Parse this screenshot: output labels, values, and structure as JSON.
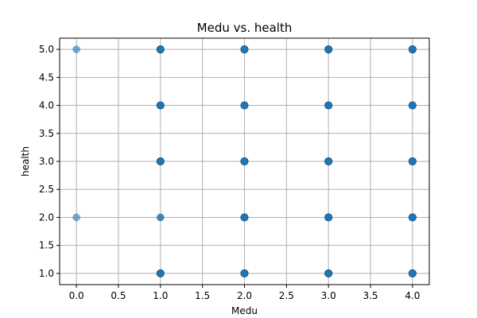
{
  "chart_data": {
    "type": "scatter",
    "title": "Medu vs. health",
    "xlabel": "Medu",
    "ylabel": "health",
    "xlim": [
      -0.2,
      4.2
    ],
    "ylim": [
      0.8,
      5.2
    ],
    "xticks": [
      0.0,
      0.5,
      1.0,
      1.5,
      2.0,
      2.5,
      3.0,
      3.5,
      4.0
    ],
    "xtick_labels": [
      "0.0",
      "0.5",
      "1.0",
      "1.5",
      "2.0",
      "2.5",
      "3.0",
      "3.5",
      "4.0"
    ],
    "yticks": [
      1.0,
      1.5,
      2.0,
      2.5,
      3.0,
      3.5,
      4.0,
      4.5,
      5.0
    ],
    "ytick_labels": [
      "1.0",
      "1.5",
      "2.0",
      "2.5",
      "3.0",
      "3.5",
      "4.0",
      "4.5",
      "5.0"
    ],
    "grid": true,
    "marker_color": "#1f77b4",
    "points": [
      {
        "x": 0,
        "y": 5,
        "density": "low"
      },
      {
        "x": 0,
        "y": 2,
        "density": "low"
      },
      {
        "x": 1,
        "y": 5,
        "density": "high"
      },
      {
        "x": 1,
        "y": 4,
        "density": "high"
      },
      {
        "x": 1,
        "y": 3,
        "density": "high"
      },
      {
        "x": 1,
        "y": 2,
        "density": "medium"
      },
      {
        "x": 1,
        "y": 1,
        "density": "high"
      },
      {
        "x": 2,
        "y": 5,
        "density": "high"
      },
      {
        "x": 2,
        "y": 4,
        "density": "high"
      },
      {
        "x": 2,
        "y": 3,
        "density": "high"
      },
      {
        "x": 2,
        "y": 2,
        "density": "high"
      },
      {
        "x": 2,
        "y": 1,
        "density": "high"
      },
      {
        "x": 3,
        "y": 5,
        "density": "high"
      },
      {
        "x": 3,
        "y": 4,
        "density": "high"
      },
      {
        "x": 3,
        "y": 3,
        "density": "high"
      },
      {
        "x": 3,
        "y": 2,
        "density": "high"
      },
      {
        "x": 3,
        "y": 1,
        "density": "high"
      },
      {
        "x": 4,
        "y": 5,
        "density": "high"
      },
      {
        "x": 4,
        "y": 4,
        "density": "high"
      },
      {
        "x": 4,
        "y": 3,
        "density": "high"
      },
      {
        "x": 4,
        "y": 2,
        "density": "high"
      },
      {
        "x": 4,
        "y": 1,
        "density": "high"
      }
    ]
  }
}
